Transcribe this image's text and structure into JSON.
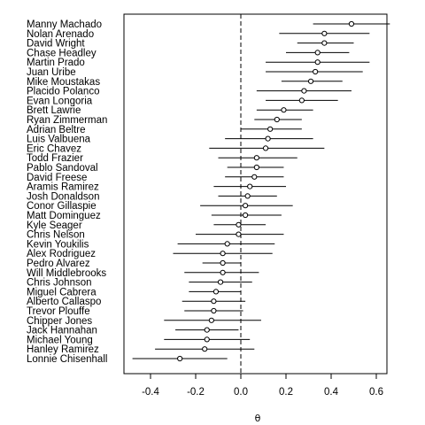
{
  "chart_data": {
    "type": "forest-plot",
    "xlabel": "θ",
    "xticks": [
      -0.4,
      -0.2,
      0.0,
      0.2,
      0.4,
      0.6
    ],
    "xtick_labels": [
      "-0.4",
      "-0.2",
      "0.0",
      "0.2",
      "0.4",
      "0.6"
    ],
    "xlim": [
      -0.5,
      0.66
    ],
    "reference_line": 0,
    "grid": false,
    "players": [
      {
        "name": "Manny Machado",
        "estimate": 0.49,
        "lower": 0.32,
        "upper": 0.66
      },
      {
        "name": "Nolan Arenado",
        "estimate": 0.37,
        "lower": 0.17,
        "upper": 0.57
      },
      {
        "name": "David Wright",
        "estimate": 0.37,
        "lower": 0.25,
        "upper": 0.5
      },
      {
        "name": "Chase Headley",
        "estimate": 0.34,
        "lower": 0.2,
        "upper": 0.48
      },
      {
        "name": "Martin Prado",
        "estimate": 0.34,
        "lower": 0.11,
        "upper": 0.57
      },
      {
        "name": "Juan Uribe",
        "estimate": 0.33,
        "lower": 0.11,
        "upper": 0.54
      },
      {
        "name": "Mike Moustakas",
        "estimate": 0.31,
        "lower": 0.18,
        "upper": 0.45
      },
      {
        "name": "Placido Polanco",
        "estimate": 0.28,
        "lower": 0.07,
        "upper": 0.49
      },
      {
        "name": "Evan Longoria",
        "estimate": 0.27,
        "lower": 0.11,
        "upper": 0.43
      },
      {
        "name": "Brett Lawrie",
        "estimate": 0.19,
        "lower": 0.07,
        "upper": 0.32
      },
      {
        "name": "Ryan Zimmerman",
        "estimate": 0.16,
        "lower": 0.06,
        "upper": 0.27
      },
      {
        "name": "Adrian Beltre",
        "estimate": 0.13,
        "lower": 0.0,
        "upper": 0.27
      },
      {
        "name": "Luis Valbuena",
        "estimate": 0.12,
        "lower": -0.07,
        "upper": 0.32
      },
      {
        "name": "Eric Chavez",
        "estimate": 0.11,
        "lower": -0.14,
        "upper": 0.37
      },
      {
        "name": "Todd Frazier",
        "estimate": 0.07,
        "lower": -0.1,
        "upper": 0.25
      },
      {
        "name": "Pablo Sandoval",
        "estimate": 0.07,
        "lower": -0.06,
        "upper": 0.19
      },
      {
        "name": "David Freese",
        "estimate": 0.06,
        "lower": -0.07,
        "upper": 0.19
      },
      {
        "name": "Aramis Ramirez",
        "estimate": 0.04,
        "lower": -0.12,
        "upper": 0.2
      },
      {
        "name": "Josh Donaldson",
        "estimate": 0.03,
        "lower": -0.1,
        "upper": 0.16
      },
      {
        "name": "Conor Gillaspie",
        "estimate": 0.02,
        "lower": -0.18,
        "upper": 0.23
      },
      {
        "name": "Matt Dominguez",
        "estimate": 0.02,
        "lower": -0.13,
        "upper": 0.18
      },
      {
        "name": "Kyle Seager",
        "estimate": -0.01,
        "lower": -0.12,
        "upper": 0.11
      },
      {
        "name": "Chris Nelson",
        "estimate": -0.01,
        "lower": -0.2,
        "upper": 0.19
      },
      {
        "name": "Kevin Youkilis",
        "estimate": -0.06,
        "lower": -0.28,
        "upper": 0.15
      },
      {
        "name": "Alex Rodriguez",
        "estimate": -0.08,
        "lower": -0.3,
        "upper": 0.14
      },
      {
        "name": "Pedro Alvarez",
        "estimate": -0.08,
        "lower": -0.17,
        "upper": 0.0
      },
      {
        "name": "Will Middlebrooks",
        "estimate": -0.08,
        "lower": -0.25,
        "upper": 0.08
      },
      {
        "name": "Chris Johnson",
        "estimate": -0.09,
        "lower": -0.23,
        "upper": 0.05
      },
      {
        "name": "Miguel Cabrera",
        "estimate": -0.11,
        "lower": -0.23,
        "upper": 0.0
      },
      {
        "name": "Alberto Callaspo",
        "estimate": -0.12,
        "lower": -0.26,
        "upper": 0.02
      },
      {
        "name": "Trevor Plouffe",
        "estimate": -0.12,
        "lower": -0.25,
        "upper": 0.01
      },
      {
        "name": "Chipper Jones",
        "estimate": -0.13,
        "lower": -0.34,
        "upper": 0.09
      },
      {
        "name": "Jack Hannahan",
        "estimate": -0.15,
        "lower": -0.29,
        "upper": -0.01
      },
      {
        "name": "Michael Young",
        "estimate": -0.15,
        "lower": -0.34,
        "upper": 0.04
      },
      {
        "name": "Hanley Ramirez",
        "estimate": -0.16,
        "lower": -0.38,
        "upper": 0.06
      },
      {
        "name": "Lonnie Chisenhall",
        "estimate": -0.27,
        "lower": -0.48,
        "upper": -0.06
      }
    ]
  }
}
